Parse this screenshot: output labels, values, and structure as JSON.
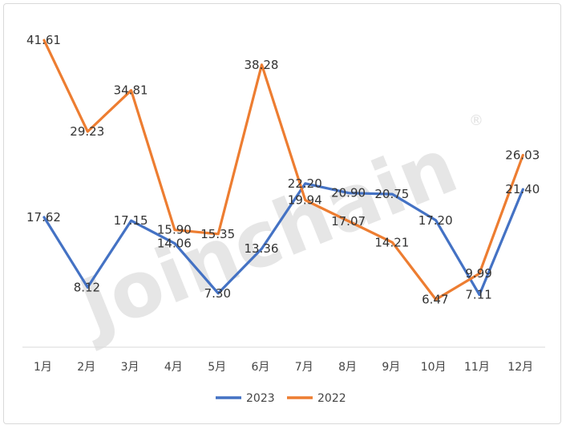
{
  "watermark": {
    "text": "Joinchain",
    "mark": "®"
  },
  "chart_data": {
    "type": "line",
    "categories": [
      "1月",
      "2月",
      "3月",
      "4月",
      "5月",
      "6月",
      "7月",
      "8月",
      "9月",
      "10月",
      "11月",
      "12月"
    ],
    "series": [
      {
        "name": "2023",
        "color": "#4472c4",
        "values": [
          17.62,
          8.12,
          17.15,
          14.06,
          7.3,
          13.36,
          22.2,
          20.9,
          20.75,
          17.2,
          7.11,
          21.4
        ],
        "labels": [
          "17.62",
          "8.12",
          "17.15",
          "14.06",
          "7.30",
          "13.36",
          "22.20",
          "20.90",
          "20.75",
          "17.20",
          "7.11",
          "21.40"
        ]
      },
      {
        "name": "2022",
        "color": "#ed7d31",
        "values": [
          41.61,
          29.23,
          34.81,
          15.9,
          15.35,
          38.28,
          19.94,
          17.07,
          14.21,
          6.47,
          9.99,
          26.03
        ],
        "labels": [
          "41.61",
          "29.23",
          "34.81",
          "15.90",
          "15.35",
          "38.28",
          "19.94",
          "17.07",
          "14.21",
          "6.47",
          "9.99",
          "26.03"
        ]
      }
    ],
    "title": "",
    "xlabel": "",
    "ylabel": "",
    "ylim": [
      0,
      45
    ],
    "grid": false,
    "legend_position": "bottom"
  }
}
